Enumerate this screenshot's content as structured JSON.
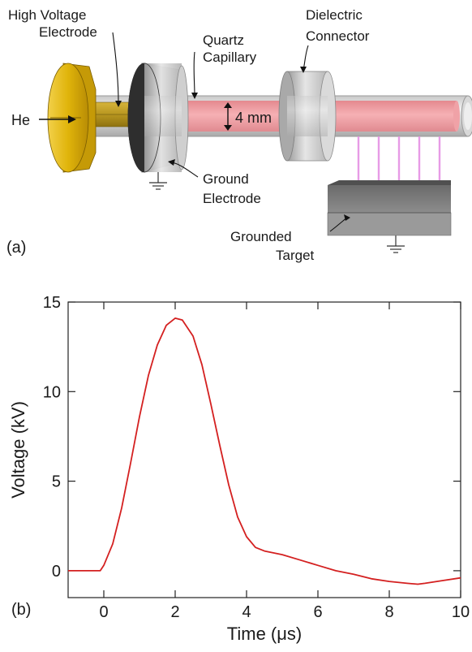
{
  "diagram": {
    "panel_label": "(a)",
    "labels": {
      "hv_electrode_line1": "High Voltage",
      "hv_electrode_line2": "Electrode",
      "quartz_line1": "Quartz",
      "quartz_line2": "Capillary",
      "dielectric_line1": "Dielectric",
      "dielectric_line2": "Connector",
      "gas": "He",
      "diameter": "4 mm",
      "ground_line1": "Ground",
      "ground_line2": "Electrode",
      "target_line1": "Grounded",
      "target_line2": "Target"
    },
    "colors": {
      "hv_electrode": "#e0b40a",
      "plasma": "#f4a3a8",
      "jets": "#e79be6",
      "target": "#7a7a7a"
    }
  },
  "chart": {
    "panel_label": "(b)",
    "chart_data": {
      "type": "line",
      "xlabel": "Time (μs)",
      "ylabel": "Voltage (kV)",
      "xlim": [
        -1,
        10
      ],
      "ylim": [
        -1.5,
        15
      ],
      "xticks": [
        0,
        2,
        4,
        6,
        8,
        10
      ],
      "yticks": [
        0,
        5,
        10,
        15
      ],
      "grid": false,
      "series": [
        {
          "color": "#d42020",
          "x": [
            -1,
            -0.1,
            0,
            0.25,
            0.5,
            0.75,
            1.0,
            1.25,
            1.5,
            1.75,
            2.0,
            2.2,
            2.5,
            2.75,
            3.0,
            3.25,
            3.5,
            3.75,
            4.0,
            4.25,
            4.5,
            5.0,
            5.5,
            6.0,
            6.5,
            7.0,
            7.5,
            8.0,
            8.5,
            8.8,
            9.0,
            9.5,
            10.0
          ],
          "y": [
            0,
            0,
            0.3,
            1.5,
            3.5,
            6.0,
            8.6,
            10.9,
            12.6,
            13.7,
            14.1,
            14.0,
            13.1,
            11.5,
            9.3,
            7.0,
            4.8,
            3.0,
            1.9,
            1.3,
            1.1,
            0.9,
            0.6,
            0.3,
            0.0,
            -0.2,
            -0.45,
            -0.6,
            -0.7,
            -0.75,
            -0.7,
            -0.55,
            -0.4
          ]
        }
      ]
    }
  }
}
